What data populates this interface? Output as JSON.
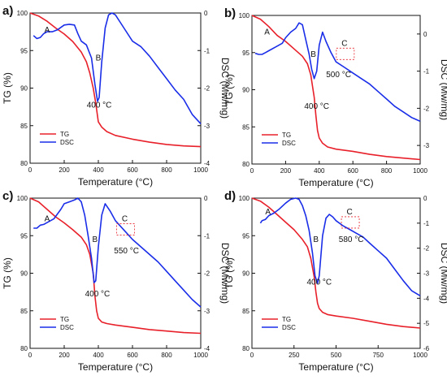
{
  "chart_data": [
    {
      "panel_label": "a)",
      "type": "line",
      "xlabel": "Temperature (°C)",
      "ylabel_left": "TG (%)",
      "ylabel_right": "DSC (Mw/mg)",
      "xlim": [
        0,
        1000
      ],
      "ylim_left": [
        80,
        100
      ],
      "ylim_right": [
        -4,
        0
      ],
      "x_ticks": [
        "0",
        "200",
        "400",
        "600",
        "800",
        "1000"
      ],
      "y_left_ticks": [
        "80",
        "85",
        "90",
        "95",
        "100"
      ],
      "y_right_ticks": [
        "-4",
        "-3",
        "-2",
        "-1",
        "0"
      ],
      "legend": [
        "TG",
        "DSC"
      ],
      "annotations": [
        {
          "text": "A",
          "x": 100,
          "y_axis": "right",
          "y": -0.45
        },
        {
          "text": "B",
          "x": 400,
          "y_axis": "right",
          "y": -1.2
        },
        {
          "text": "400 °C",
          "x": 405,
          "y_axis": "right",
          "y": -2.45
        }
      ],
      "series": [
        {
          "name": "TG",
          "color": "#e8202a",
          "axis": "left",
          "x": [
            0,
            50,
            100,
            150,
            200,
            250,
            300,
            330,
            350,
            370,
            385,
            400,
            420,
            450,
            500,
            600,
            700,
            800,
            900,
            1000
          ],
          "y": [
            100,
            99.6,
            98.9,
            98.0,
            97.2,
            96.2,
            94.8,
            93.5,
            92.0,
            90.0,
            88.0,
            85.5,
            84.8,
            84.2,
            83.7,
            83.2,
            82.8,
            82.5,
            82.3,
            82.2
          ]
        },
        {
          "name": "DSC",
          "color": "#1a2ee8",
          "axis": "right",
          "x": [
            20,
            40,
            60,
            80,
            100,
            130,
            160,
            200,
            230,
            260,
            280,
            300,
            330,
            360,
            380,
            395,
            405,
            420,
            440,
            460,
            480,
            500,
            550,
            600,
            650,
            700,
            750,
            800,
            850,
            900,
            950,
            1000
          ],
          "y": [
            -0.6,
            -0.68,
            -0.65,
            -0.55,
            -0.5,
            -0.5,
            -0.45,
            -0.32,
            -0.3,
            -0.32,
            -0.55,
            -0.75,
            -0.85,
            -1.2,
            -1.9,
            -2.35,
            -2.25,
            -1.3,
            -0.4,
            -0.05,
            0.0,
            -0.05,
            -0.4,
            -0.75,
            -0.9,
            -1.15,
            -1.45,
            -1.75,
            -2.05,
            -2.3,
            -2.7,
            -2.95
          ]
        }
      ]
    },
    {
      "panel_label": "b)",
      "type": "line",
      "xlabel": "Temperature (°C)",
      "ylabel_left": "TG (%)",
      "ylabel_right": "DSC (Mw/mg)",
      "xlim": [
        0,
        1000
      ],
      "ylim_left": [
        80,
        100
      ],
      "ylim_right": [
        -3.5,
        0.5
      ],
      "x_ticks": [
        "0",
        "200",
        "400",
        "600",
        "800",
        "1000"
      ],
      "y_left_ticks": [
        "80",
        "85",
        "90",
        "95",
        "100"
      ],
      "y_right_ticks": [
        "-3",
        "-2",
        "-1",
        "0"
      ],
      "legend": [
        "TG",
        "DSC"
      ],
      "annotations": [
        {
          "text": "A",
          "x": 90,
          "y_axis": "right",
          "y": 0.05
        },
        {
          "text": "B",
          "x": 365,
          "y_axis": "right",
          "y": -0.55
        },
        {
          "text": "C",
          "x": 550,
          "y_axis": "right",
          "y": -0.25
        },
        {
          "text": "500 °C",
          "x": 515,
          "y_axis": "right",
          "y": -1.1
        },
        {
          "text": "400 °C",
          "x": 385,
          "y_axis": "right",
          "y": -1.95
        }
      ],
      "series": [
        {
          "name": "TG",
          "color": "#e8202a",
          "axis": "left",
          "x": [
            0,
            50,
            100,
            150,
            200,
            250,
            300,
            330,
            350,
            370,
            380,
            390,
            400,
            420,
            450,
            500,
            600,
            700,
            800,
            900,
            1000
          ],
          "y": [
            100,
            99.5,
            98.5,
            97.3,
            96.5,
            95.5,
            94.5,
            93.5,
            92.0,
            89.0,
            86.5,
            84.5,
            83.5,
            82.8,
            82.3,
            82.0,
            81.7,
            81.3,
            81.0,
            80.8,
            80.6
          ]
        },
        {
          "name": "DSC",
          "color": "#1a2ee8",
          "axis": "right",
          "x": [
            20,
            40,
            60,
            80,
            100,
            140,
            180,
            200,
            230,
            260,
            280,
            300,
            320,
            340,
            355,
            370,
            385,
            400,
            420,
            440,
            470,
            500,
            550,
            600,
            650,
            700,
            750,
            800,
            850,
            900,
            950,
            1000
          ],
          "y": [
            -0.52,
            -0.55,
            -0.55,
            -0.5,
            -0.45,
            -0.35,
            -0.25,
            -0.1,
            0.05,
            0.15,
            0.3,
            0.25,
            -0.15,
            -0.55,
            -0.95,
            -1.2,
            -1.0,
            -0.3,
            0.05,
            -0.2,
            -0.5,
            -0.75,
            -0.9,
            -1.05,
            -1.2,
            -1.35,
            -1.55,
            -1.75,
            -1.95,
            -2.1,
            -2.25,
            -2.35
          ]
        }
      ]
    },
    {
      "panel_label": "c)",
      "type": "line",
      "xlabel": "Temperature (°C)",
      "ylabel_left": "TG (%)",
      "ylabel_right": "DSC (Mw/mg)",
      "xlim": [
        0,
        1000
      ],
      "ylim_left": [
        80,
        100
      ],
      "ylim_right": [
        -4,
        0
      ],
      "x_ticks": [
        "0",
        "200",
        "400",
        "600",
        "800",
        "1000"
      ],
      "y_left_ticks": [
        "80",
        "85",
        "90",
        "95",
        "100"
      ],
      "y_right_ticks": [
        "-4",
        "-3",
        "-2",
        "-1",
        "0"
      ],
      "legend": [
        "TG",
        "DSC"
      ],
      "annotations": [
        {
          "text": "A",
          "x": 100,
          "y_axis": "right",
          "y": -0.55
        },
        {
          "text": "B",
          "x": 380,
          "y_axis": "right",
          "y": -1.1
        },
        {
          "text": "C",
          "x": 555,
          "y_axis": "right",
          "y": -0.55
        },
        {
          "text": "550 °C",
          "x": 565,
          "y_axis": "right",
          "y": -1.4
        },
        {
          "text": "400 °C",
          "x": 395,
          "y_axis": "right",
          "y": -2.55
        }
      ],
      "series": [
        {
          "name": "TG",
          "color": "#e8202a",
          "axis": "left",
          "x": [
            0,
            50,
            100,
            150,
            200,
            250,
            300,
            330,
            350,
            370,
            380,
            390,
            400,
            420,
            450,
            500,
            600,
            700,
            800,
            900,
            1000
          ],
          "y": [
            100,
            99.5,
            98.5,
            97.5,
            96.7,
            95.8,
            94.8,
            93.8,
            92.5,
            90.0,
            87.0,
            85.0,
            84.0,
            83.5,
            83.3,
            83.1,
            82.8,
            82.5,
            82.3,
            82.1,
            82.0
          ]
        },
        {
          "name": "DSC",
          "color": "#1a2ee8",
          "axis": "right",
          "x": [
            20,
            40,
            60,
            80,
            100,
            140,
            180,
            200,
            230,
            260,
            280,
            300,
            320,
            340,
            360,
            375,
            385,
            400,
            420,
            440,
            470,
            500,
            550,
            600,
            650,
            700,
            750,
            800,
            850,
            900,
            950,
            1000
          ],
          "y": [
            -0.8,
            -0.8,
            -0.72,
            -0.7,
            -0.65,
            -0.55,
            -0.3,
            -0.15,
            -0.1,
            -0.05,
            0.0,
            -0.1,
            -0.45,
            -1.0,
            -1.6,
            -2.25,
            -2.2,
            -1.3,
            -0.45,
            -0.15,
            -0.35,
            -0.6,
            -0.85,
            -1.1,
            -1.3,
            -1.5,
            -1.7,
            -1.95,
            -2.2,
            -2.45,
            -2.7,
            -2.9
          ]
        }
      ]
    },
    {
      "panel_label": "d)",
      "type": "line",
      "xlabel": "Temperature (°C)",
      "ylabel_left": "TG (%)",
      "ylabel_right": "DSC (Mw/mg)",
      "xlim": [
        0,
        1000
      ],
      "ylim_left": [
        80,
        100
      ],
      "ylim_right": [
        -6,
        0
      ],
      "x_ticks": [
        "0",
        "250",
        "500",
        "750",
        "1000"
      ],
      "y_left_ticks": [
        "80",
        "85",
        "90",
        "95",
        "100"
      ],
      "y_right_ticks": [
        "-6",
        "-5",
        "-4",
        "-3",
        "-2",
        "-1",
        "0"
      ],
      "legend": [
        "TG",
        "DSC"
      ],
      "annotations": [
        {
          "text": "A",
          "x": 95,
          "y_axis": "right",
          "y": -0.55
        },
        {
          "text": "B",
          "x": 380,
          "y_axis": "right",
          "y": -1.65
        },
        {
          "text": "C",
          "x": 580,
          "y_axis": "right",
          "y": -0.55
        },
        {
          "text": "580 °C",
          "x": 590,
          "y_axis": "right",
          "y": -1.65
        },
        {
          "text": "400 °C",
          "x": 400,
          "y_axis": "right",
          "y": -3.35
        }
      ],
      "series": [
        {
          "name": "TG",
          "color": "#e8202a",
          "axis": "left",
          "x": [
            0,
            50,
            100,
            150,
            200,
            250,
            300,
            330,
            350,
            370,
            380,
            390,
            400,
            420,
            450,
            500,
            600,
            700,
            800,
            900,
            1000
          ],
          "y": [
            100,
            99.6,
            98.8,
            97.8,
            96.8,
            95.8,
            94.5,
            93.5,
            92.0,
            89.5,
            87.5,
            86.0,
            85.3,
            84.8,
            84.5,
            84.3,
            84.0,
            83.6,
            83.2,
            82.9,
            82.7
          ]
        },
        {
          "name": "DSC",
          "color": "#1a2ee8",
          "axis": "right",
          "x": [
            50,
            60,
            80,
            100,
            130,
            160,
            200,
            230,
            260,
            280,
            300,
            320,
            340,
            360,
            375,
            390,
            400,
            420,
            440,
            460,
            480,
            500,
            540,
            580,
            620,
            660,
            700,
            750,
            800,
            850,
            900,
            950,
            1000
          ],
          "y": [
            -1.0,
            -0.9,
            -0.85,
            -0.7,
            -0.6,
            -0.45,
            -0.2,
            -0.05,
            0.0,
            -0.05,
            -0.3,
            -0.7,
            -1.3,
            -2.2,
            -3.1,
            -3.4,
            -3.1,
            -1.5,
            -0.8,
            -0.65,
            -0.75,
            -0.9,
            -1.1,
            -1.25,
            -1.4,
            -1.55,
            -1.8,
            -2.1,
            -2.4,
            -2.85,
            -3.3,
            -3.7,
            -3.9
          ]
        }
      ]
    }
  ]
}
